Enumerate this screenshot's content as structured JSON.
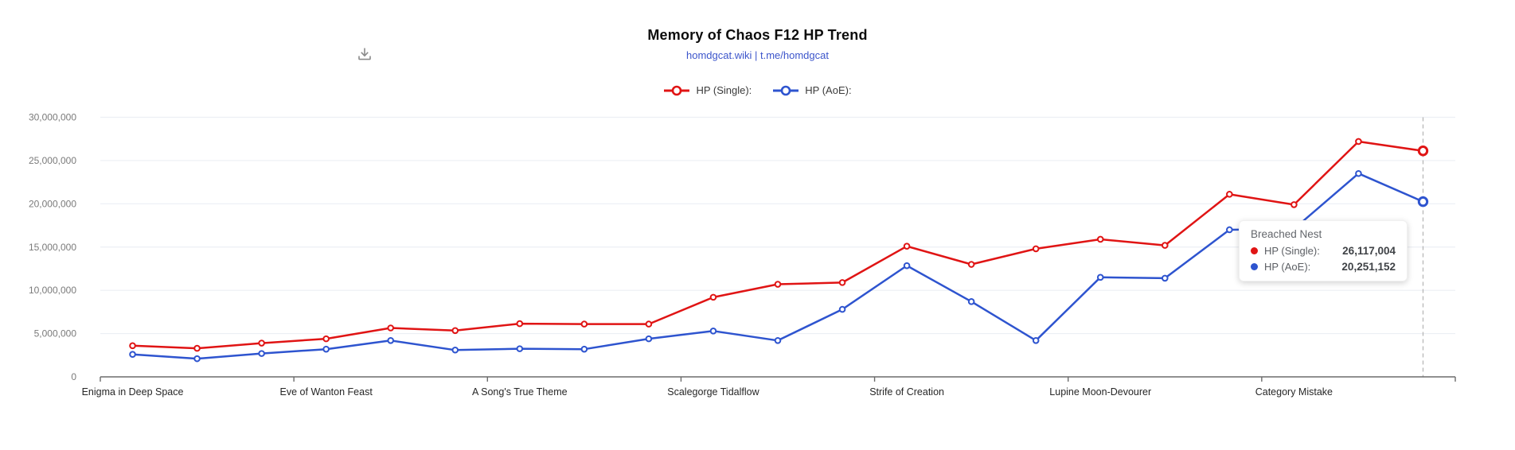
{
  "header": {
    "title": "Memory of Chaos F12 HP Trend",
    "subtitle": "homdgcat.wiki | t.me/homdgcat"
  },
  "icons": {
    "download": "download-icon"
  },
  "legend": {
    "items": [
      {
        "label": "HP (Single):",
        "color": "#e01414"
      },
      {
        "label": "HP (AoE):",
        "color": "#2e54cf"
      }
    ]
  },
  "tooltip": {
    "title": "Breached Nest",
    "rows": [
      {
        "label": "HP (Single):",
        "value": "26,117,004",
        "color": "#e01414"
      },
      {
        "label": "HP (AoE):",
        "value": "20,251,152",
        "color": "#2e54cf"
      }
    ]
  },
  "chart_data": {
    "type": "line",
    "title": "Memory of Chaos F12 HP Trend",
    "subtitle": "homdgcat.wiki | t.me/homdgcat",
    "num_points": 21,
    "x_tick_labels": [
      "Enigma in Deep Space",
      "Eve of Wanton Feast",
      "A Song's True Theme",
      "Scalegorge Tidalflow",
      "Strife of Creation",
      "Lupine Moon-Devourer",
      "Category Mistake"
    ],
    "x_tick_point_indices": [
      0,
      3,
      6,
      9,
      12,
      15,
      18
    ],
    "hovered_index": 20,
    "hovered_label": "Breached Nest",
    "ylim": [
      0,
      30000000
    ],
    "y_ticks": [
      0,
      5000000,
      10000000,
      15000000,
      20000000,
      25000000,
      30000000
    ],
    "grid": true,
    "legend_position": "top",
    "series": [
      {
        "name": "HP (Single):",
        "color": "#e01414",
        "values": [
          3600000,
          3300000,
          3900000,
          4400000,
          5650000,
          5350000,
          6150000,
          6100000,
          6100000,
          9200000,
          10700000,
          10900000,
          15100000,
          13000000,
          14800000,
          15900000,
          15200000,
          21100000,
          19900000,
          27200000,
          26117004
        ]
      },
      {
        "name": "HP (AoE):",
        "color": "#2e54cf",
        "values": [
          2600000,
          2100000,
          2700000,
          3200000,
          4200000,
          3100000,
          3250000,
          3200000,
          4400000,
          5300000,
          4200000,
          7800000,
          12850000,
          8700000,
          4200000,
          11500000,
          11400000,
          17000000,
          17100000,
          23500000,
          20251152
        ]
      }
    ]
  }
}
